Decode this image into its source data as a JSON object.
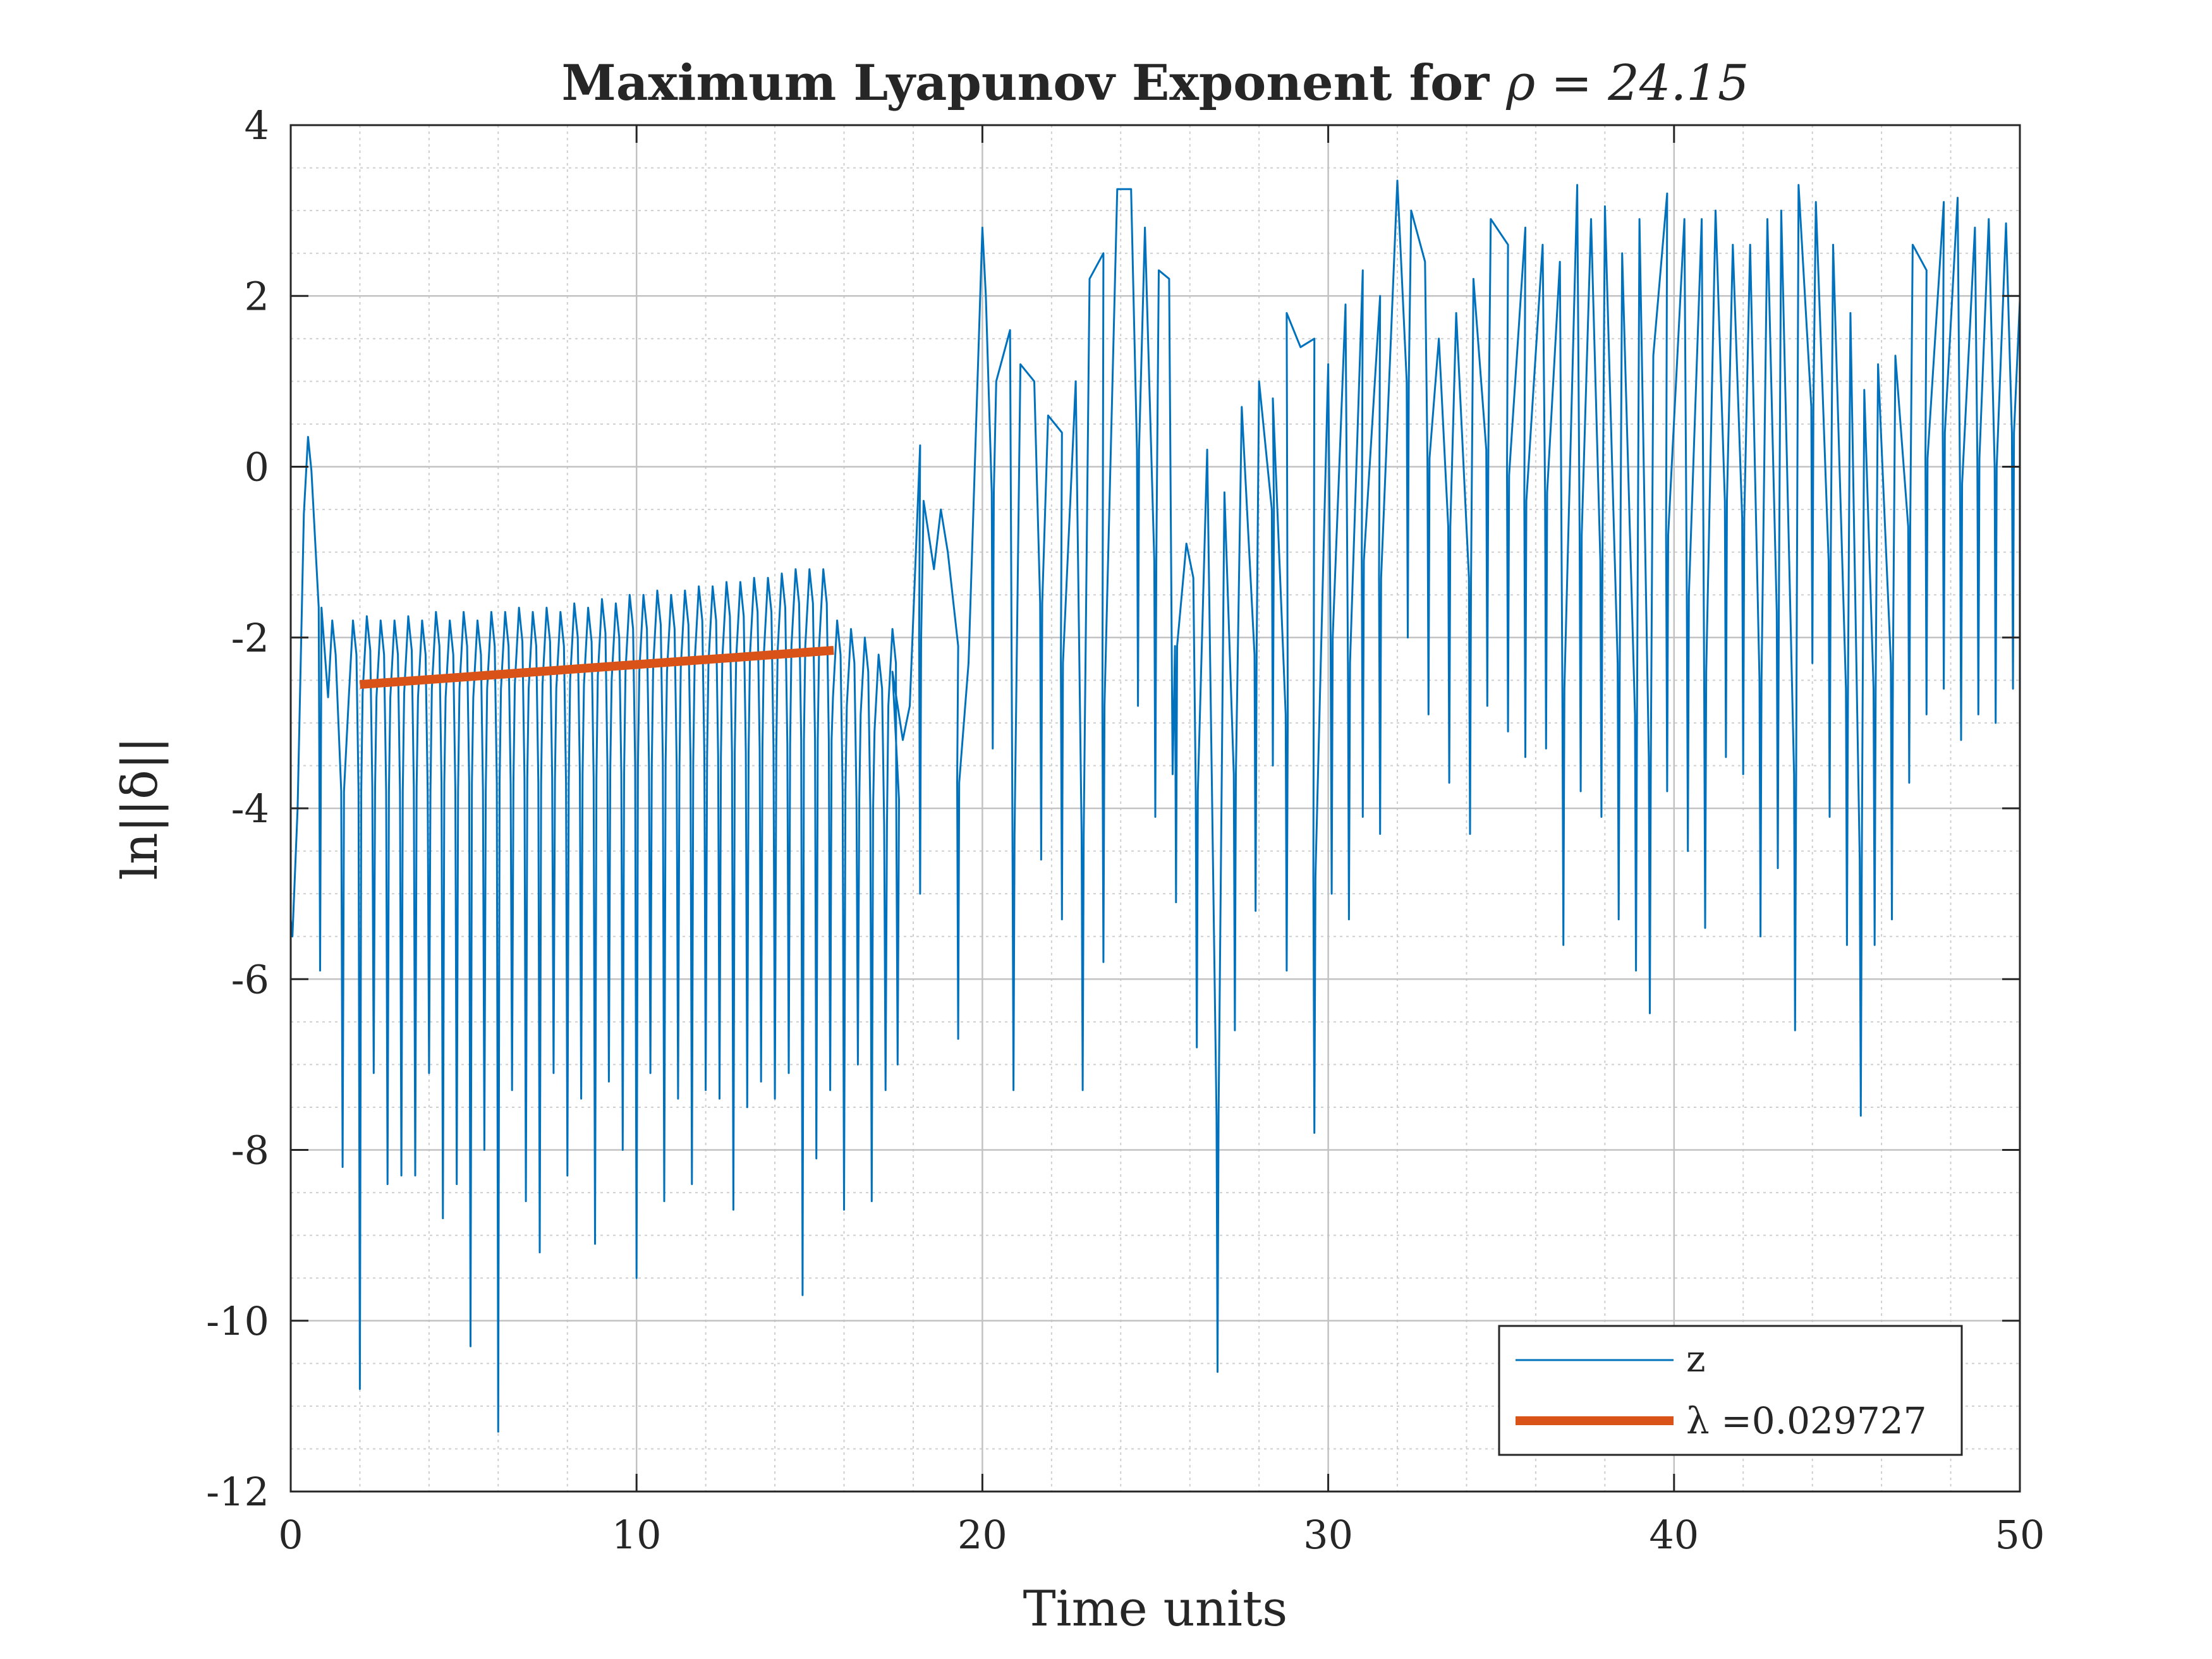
{
  "chart_data": {
    "type": "line",
    "title_prefix": "Maximum Lyapunov Exponent for ",
    "title_math": "ρ = 24.15",
    "xlabel": "Time units",
    "ylabel": "ln||δ||",
    "xlim": [
      0,
      50
    ],
    "ylim": [
      -12,
      4
    ],
    "xticks": [
      0,
      10,
      20,
      30,
      40,
      50
    ],
    "xtick_labels": [
      "0",
      "10",
      "20",
      "30",
      "40",
      "50"
    ],
    "yticks": [
      4,
      2,
      0,
      -2,
      -4,
      -6,
      -8,
      -10,
      -12
    ],
    "ytick_labels": [
      "4",
      "2",
      "0",
      "-2",
      "-4",
      "-6",
      "-8",
      "-10",
      "-12"
    ],
    "grid": "major and minor",
    "legend_position": "bottom-right",
    "series": [
      {
        "name": "z",
        "color": "#0072BD",
        "phase1_peak_x": [
          0.5,
          1.2,
          1.8,
          2.2,
          2.6,
          3.0,
          3.4,
          3.8,
          4.2,
          4.6,
          5.0,
          5.4,
          5.8,
          6.2,
          6.6,
          7.0,
          7.4,
          7.8,
          8.2,
          8.6,
          9.0,
          9.4,
          9.8,
          10.2,
          10.6,
          11.0,
          11.4,
          11.8,
          12.2,
          12.6,
          13.0,
          13.4,
          13.8,
          14.2,
          14.6,
          15.0,
          15.4,
          15.8,
          16.2,
          16.6,
          17.0,
          17.4
        ],
        "phase1_peak_y": [
          0.35,
          -1.8,
          -1.8,
          -1.75,
          -1.8,
          -1.8,
          -1.75,
          -1.8,
          -1.7,
          -1.8,
          -1.7,
          -1.8,
          -1.7,
          -1.7,
          -1.65,
          -1.7,
          -1.65,
          -1.7,
          -1.6,
          -1.65,
          -1.55,
          -1.6,
          -1.5,
          -1.5,
          -1.45,
          -1.5,
          -1.45,
          -1.4,
          -1.4,
          -1.35,
          -1.35,
          -1.3,
          -1.3,
          -1.25,
          -1.2,
          -1.2,
          -1.2,
          -1.8,
          -1.9,
          -2.0,
          -2.2,
          -1.9
        ],
        "phase1_trough_y": [
          -5.9,
          -8.2,
          -10.8,
          -7.1,
          -8.4,
          -8.3,
          -8.3,
          -7.1,
          -8.8,
          -8.4,
          -10.3,
          -8.0,
          -11.3,
          -7.3,
          -8.6,
          -9.2,
          -7.1,
          -8.3,
          -7.4,
          -9.1,
          -7.2,
          -8.0,
          -9.5,
          -7.1,
          -8.6,
          -7.4,
          -8.4,
          -7.3,
          -7.4,
          -8.7,
          -7.5,
          -7.2,
          -7.4,
          -7.1,
          -9.7,
          -8.1,
          -7.3,
          -8.7,
          -7.0,
          -8.6,
          -7.3,
          -7.0
        ],
        "phase2_points": [
          [
            17.4,
            -2.4
          ],
          [
            17.7,
            -3.2
          ],
          [
            17.9,
            -2.8
          ],
          [
            18.2,
            0.25
          ],
          [
            18.3,
            -0.4
          ],
          [
            18.6,
            -1.2
          ],
          [
            18.8,
            -0.5
          ],
          [
            19.0,
            -1.0
          ],
          [
            19.3,
            -2.1
          ],
          [
            19.6,
            -2.3
          ],
          [
            20.0,
            2.8
          ],
          [
            20.1,
            2.0
          ],
          [
            20.4,
            1.0
          ],
          [
            20.8,
            1.6
          ],
          [
            21.1,
            1.2
          ],
          [
            21.5,
            1.0
          ],
          [
            21.9,
            0.6
          ],
          [
            22.3,
            0.4
          ],
          [
            22.7,
            1.0
          ],
          [
            23.1,
            2.2
          ],
          [
            23.5,
            2.5
          ],
          [
            23.9,
            3.25
          ],
          [
            24.3,
            3.25
          ],
          [
            24.7,
            2.8
          ],
          [
            25.1,
            2.3
          ],
          [
            25.4,
            2.2
          ]
        ],
        "phase2_troughs": [
          [
            18.2,
            -5.0
          ],
          [
            19.3,
            -6.7
          ],
          [
            20.3,
            -3.3
          ],
          [
            20.9,
            -7.3
          ],
          [
            21.7,
            -4.6
          ],
          [
            22.3,
            -5.3
          ],
          [
            22.9,
            -7.3
          ],
          [
            23.5,
            -5.8
          ],
          [
            24.5,
            -2.8
          ],
          [
            25.0,
            -4.1
          ],
          [
            25.6,
            -5.1
          ],
          [
            26.2,
            -6.8
          ],
          [
            26.8,
            -10.6
          ],
          [
            27.3,
            -6.6
          ],
          [
            27.9,
            -5.2
          ],
          [
            28.4,
            -3.5
          ],
          [
            28.8,
            -5.9
          ]
        ],
        "phase3_points": [
          [
            25.5,
            -3.6
          ],
          [
            25.9,
            -0.9
          ],
          [
            26.1,
            -1.3
          ],
          [
            26.5,
            0.2
          ],
          [
            27.0,
            -0.3
          ],
          [
            27.5,
            0.7
          ],
          [
            28.0,
            1.0
          ],
          [
            28.4,
            0.8
          ],
          [
            28.8,
            1.8
          ],
          [
            29.2,
            1.4
          ],
          [
            29.6,
            1.5
          ],
          [
            30.0,
            1.2
          ],
          [
            30.5,
            1.9
          ],
          [
            31.0,
            2.3
          ],
          [
            31.5,
            2.0
          ],
          [
            32.0,
            3.35
          ],
          [
            32.4,
            3.0
          ],
          [
            32.8,
            2.4
          ],
          [
            33.2,
            1.5
          ],
          [
            33.7,
            1.8
          ],
          [
            34.2,
            2.2
          ],
          [
            34.7,
            2.9
          ],
          [
            35.2,
            2.6
          ],
          [
            35.7,
            2.8
          ],
          [
            36.2,
            2.6
          ],
          [
            36.7,
            2.4
          ],
          [
            37.2,
            3.3
          ],
          [
            37.6,
            2.9
          ],
          [
            38.0,
            3.05
          ],
          [
            38.5,
            2.5
          ],
          [
            39.0,
            2.9
          ],
          [
            39.4,
            1.3
          ],
          [
            39.8,
            3.2
          ],
          [
            40.3,
            2.9
          ],
          [
            40.8,
            2.9
          ],
          [
            41.2,
            3.0
          ],
          [
            41.7,
            2.6
          ],
          [
            42.2,
            2.6
          ],
          [
            42.7,
            2.9
          ],
          [
            43.1,
            3.0
          ],
          [
            43.6,
            3.3
          ],
          [
            44.1,
            3.1
          ],
          [
            44.6,
            2.6
          ],
          [
            45.1,
            1.8
          ],
          [
            45.5,
            0.9
          ],
          [
            45.9,
            1.2
          ],
          [
            46.4,
            1.3
          ],
          [
            46.9,
            2.6
          ],
          [
            47.3,
            2.3
          ],
          [
            47.8,
            3.1
          ],
          [
            48.2,
            3.15
          ],
          [
            48.7,
            2.8
          ],
          [
            49.1,
            2.9
          ],
          [
            49.6,
            2.85
          ],
          [
            50.0,
            1.95
          ]
        ],
        "phase3_troughs": [
          [
            29.6,
            -7.8
          ],
          [
            30.1,
            -5.0
          ],
          [
            30.6,
            -5.3
          ],
          [
            31.0,
            -4.1
          ],
          [
            31.5,
            -4.3
          ],
          [
            32.3,
            -2.0
          ],
          [
            32.9,
            -2.9
          ],
          [
            33.5,
            -3.7
          ],
          [
            34.1,
            -4.3
          ],
          [
            34.6,
            -2.8
          ],
          [
            35.2,
            -3.1
          ],
          [
            35.7,
            -3.4
          ],
          [
            36.3,
            -3.3
          ],
          [
            36.8,
            -5.6
          ],
          [
            37.3,
            -3.8
          ],
          [
            37.9,
            -4.1
          ],
          [
            38.4,
            -5.3
          ],
          [
            38.9,
            -5.9
          ],
          [
            39.3,
            -6.4
          ],
          [
            39.8,
            -3.8
          ],
          [
            40.4,
            -4.5
          ],
          [
            40.9,
            -5.4
          ],
          [
            41.5,
            -3.4
          ],
          [
            42.0,
            -3.6
          ],
          [
            42.5,
            -5.5
          ],
          [
            43.0,
            -4.7
          ],
          [
            43.5,
            -6.6
          ],
          [
            44.0,
            -2.3
          ],
          [
            44.5,
            -4.1
          ],
          [
            45.0,
            -5.6
          ],
          [
            45.4,
            -7.6
          ],
          [
            45.8,
            -5.6
          ],
          [
            46.3,
            -5.3
          ],
          [
            46.8,
            -3.7
          ],
          [
            47.3,
            -2.9
          ],
          [
            47.8,
            -2.6
          ],
          [
            48.3,
            -3.2
          ],
          [
            48.8,
            -2.9
          ],
          [
            49.3,
            -3.0
          ],
          [
            49.8,
            -2.6
          ]
        ]
      },
      {
        "name": "λ =0.029727",
        "color": "#D95319",
        "x": [
          2.0,
          15.7
        ],
        "y": [
          -2.55,
          -2.15
        ]
      }
    ]
  }
}
